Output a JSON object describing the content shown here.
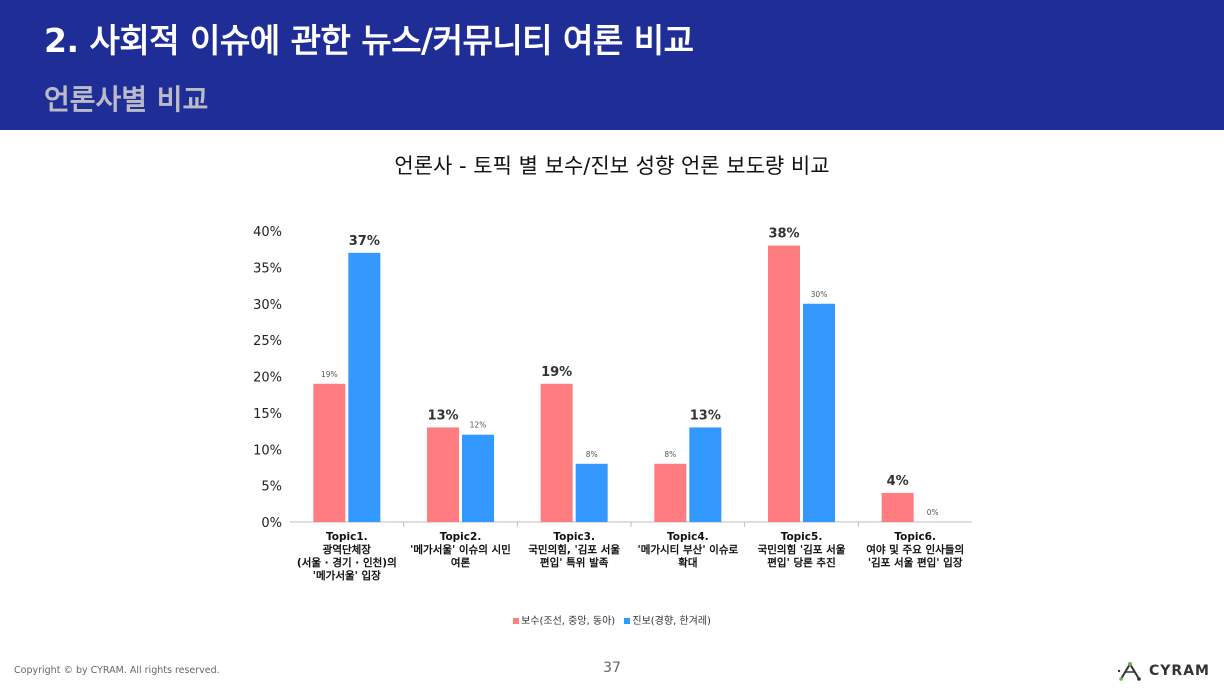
{
  "header": {
    "title": "2. 사회적 이슈에 관한 뉴스/커뮤니티 여론 비교",
    "subtitle": "언론사별 비교"
  },
  "colors": {
    "header_bg": "#1f2e96",
    "conservative": "#ff7c80",
    "progressive": "#3399ff"
  },
  "chart_data": {
    "type": "bar",
    "title": "언론사  - 토픽 별 보수/진보 성향 언론 보도량 비교",
    "xlabel": "",
    "ylabel": "",
    "ylim": [
      0,
      40
    ],
    "yticks": [
      "0%",
      "5%",
      "10%",
      "15%",
      "20%",
      "25%",
      "30%",
      "35%",
      "40%"
    ],
    "categories": [
      [
        "Topic1.",
        "광역단체장",
        "(서울 · 경기 · 인천)의",
        "'메가서울' 입장"
      ],
      [
        "Topic2.",
        "'메가서울' 이슈의 시민",
        "여론"
      ],
      [
        "Topic3.",
        "국민의힘, '김포 서울",
        "편입' 특위 발족"
      ],
      [
        "Topic4.",
        "'메가시티 부산' 이슈로",
        "확대"
      ],
      [
        "Topic5.",
        "국민의힘 '김포 서울",
        "편입' 당론 추진"
      ],
      [
        "Topic6.",
        "여야 및 주요 인사들의",
        "'김포 서울 편입' 입장"
      ]
    ],
    "series": [
      {
        "name": "보수(조선, 중앙, 동아)",
        "values": [
          19,
          13,
          19,
          8,
          38,
          4
        ],
        "labels": [
          "19%",
          "13%",
          "19%",
          "8%",
          "38%",
          "4%"
        ],
        "emphasis": [
          false,
          true,
          true,
          false,
          true,
          true
        ]
      },
      {
        "name": "진보(경향, 한겨레)",
        "values": [
          37,
          12,
          8,
          13,
          30,
          0
        ],
        "labels": [
          "37%",
          "12%",
          "8%",
          "13%",
          "30%",
          "0%"
        ],
        "emphasis": [
          true,
          false,
          false,
          true,
          false,
          false
        ]
      }
    ],
    "legend": "bottom"
  },
  "footer": {
    "copyright": "Copyright © by CYRAM. All rights reserved.",
    "page": "37",
    "logo_text": "CYRAM"
  }
}
